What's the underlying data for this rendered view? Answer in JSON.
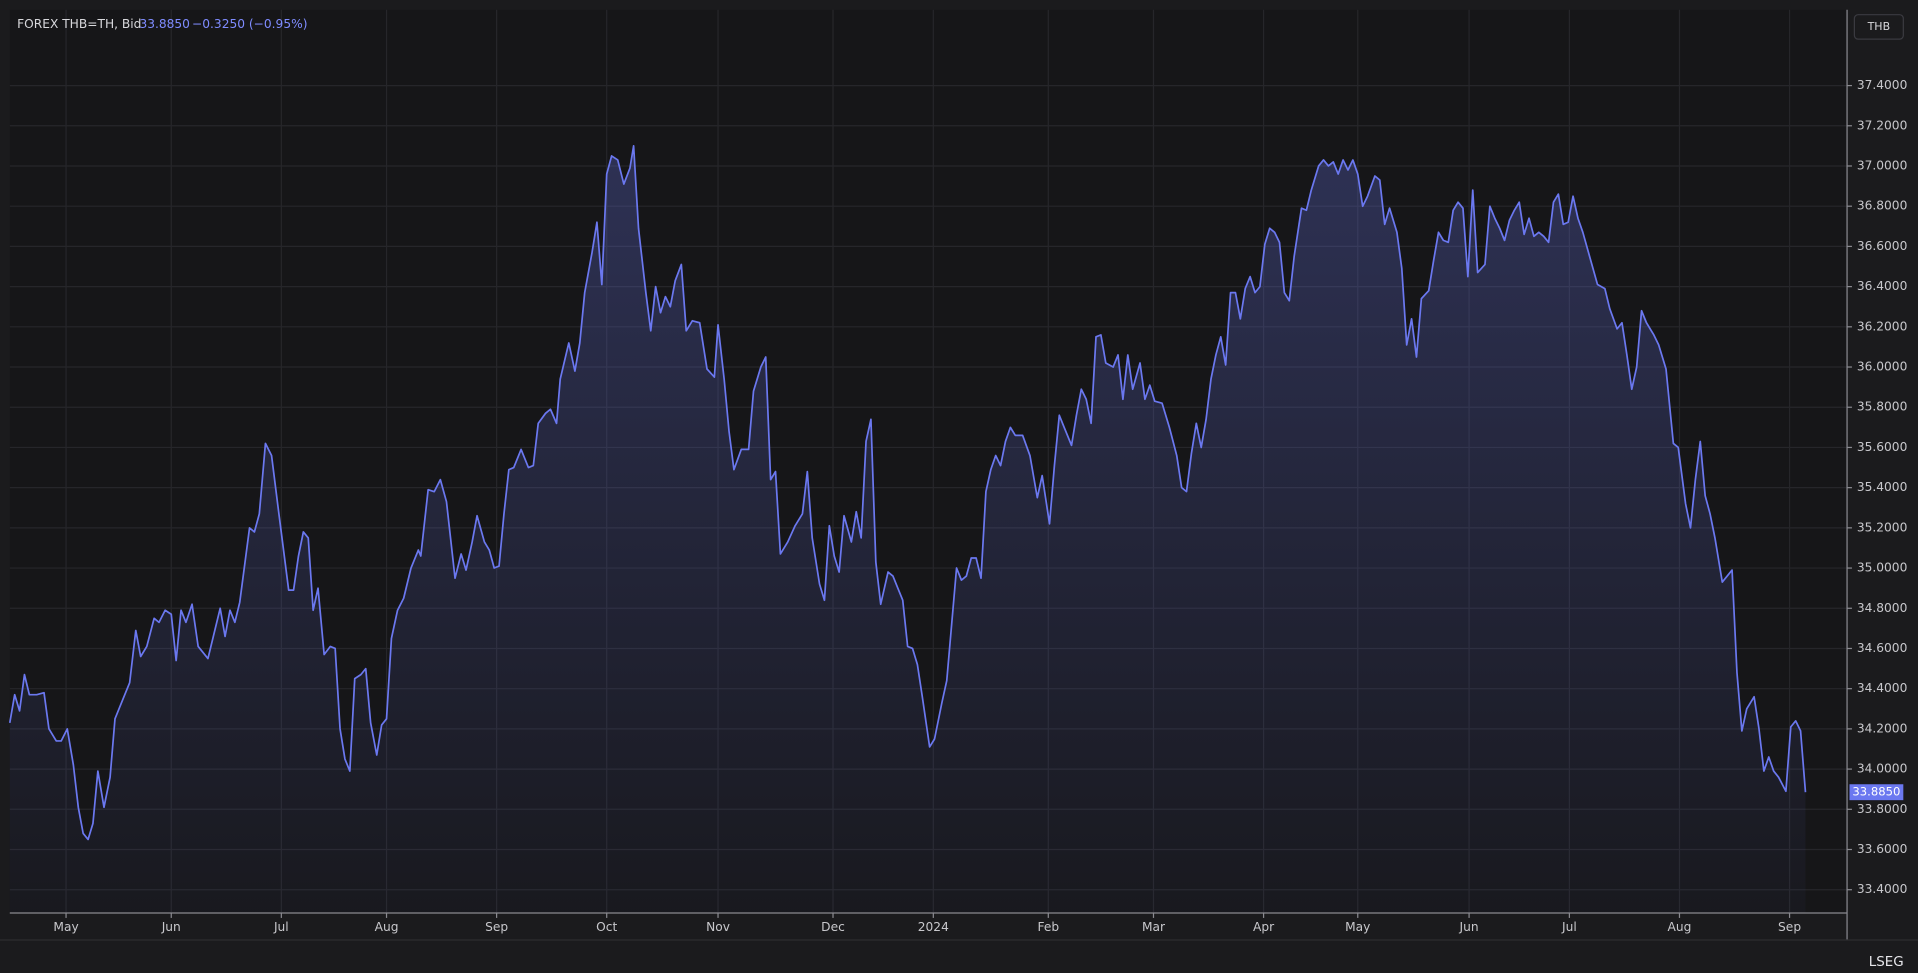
{
  "header": {
    "instrument": "FOREX THB=TH, Bid",
    "last": "33.8850",
    "change": "−0.3250 (−0.95%)",
    "currency": "THB",
    "brand": "LSEG"
  },
  "chart_data": {
    "type": "line",
    "grid": true,
    "xlim": [
      0,
      1502
    ],
    "ylim": [
      33.284,
      37.777
    ],
    "xticks": [
      {
        "value": 46,
        "label": "May"
      },
      {
        "value": 132,
        "label": "Jun"
      },
      {
        "value": 222,
        "label": "Jul"
      },
      {
        "value": 308,
        "label": "Aug"
      },
      {
        "value": 398,
        "label": "Sep"
      },
      {
        "value": 488,
        "label": "Oct"
      },
      {
        "value": 579,
        "label": "Nov"
      },
      {
        "value": 673,
        "label": "Dec"
      },
      {
        "value": 755,
        "label": "2024"
      },
      {
        "value": 849,
        "label": "Feb"
      },
      {
        "value": 935,
        "label": "Mar"
      },
      {
        "value": 1025,
        "label": "Apr"
      },
      {
        "value": 1102,
        "label": "May"
      },
      {
        "value": 1193,
        "label": "Jun"
      },
      {
        "value": 1275,
        "label": "Jul"
      },
      {
        "value": 1365,
        "label": "Aug"
      },
      {
        "value": 1455,
        "label": "Sep"
      }
    ],
    "yticks": [
      {
        "value": 33.4,
        "label": "33.4000"
      },
      {
        "value": 33.6,
        "label": "33.6000"
      },
      {
        "value": 33.8,
        "label": "33.8000"
      },
      {
        "value": 34,
        "label": "34.0000"
      },
      {
        "value": 34.2,
        "label": "34.2000"
      },
      {
        "value": 34.4,
        "label": "34.4000"
      },
      {
        "value": 34.6,
        "label": "34.6000"
      },
      {
        "value": 34.8,
        "label": "34.8000"
      },
      {
        "value": 35,
        "label": "35.0000"
      },
      {
        "value": 35.2,
        "label": "35.2000"
      },
      {
        "value": 35.4,
        "label": "35.4000"
      },
      {
        "value": 35.6,
        "label": "35.6000"
      },
      {
        "value": 35.8,
        "label": "35.8000"
      },
      {
        "value": 36,
        "label": "36.0000"
      },
      {
        "value": 36.2,
        "label": "36.2000"
      },
      {
        "value": 36.4,
        "label": "36.4000"
      },
      {
        "value": 36.6,
        "label": "36.6000"
      },
      {
        "value": 36.8,
        "label": "36.8000"
      },
      {
        "value": 37,
        "label": "37.0000"
      },
      {
        "value": 37.2,
        "label": "37.2000"
      },
      {
        "value": 37.4,
        "label": "37.4000"
      }
    ],
    "x": [
      0,
      4,
      8,
      12,
      16,
      22,
      28,
      32,
      38,
      42,
      47,
      52,
      56,
      60,
      64,
      68,
      72,
      77,
      82,
      86,
      92,
      98,
      103,
      107,
      112,
      118,
      122,
      127,
      132,
      136,
      140,
      144,
      149,
      154,
      162,
      172,
      176,
      180,
      184,
      188,
      196,
      200,
      204,
      209,
      214,
      220,
      228,
      232,
      236,
      240,
      244,
      248,
      252,
      257,
      262,
      266,
      270,
      274,
      278,
      282,
      287,
      291,
      295,
      300,
      304,
      308,
      312,
      317,
      322,
      328,
      334,
      336,
      342,
      347,
      352,
      357,
      364,
      369,
      373,
      378,
      382,
      388,
      392,
      396,
      400,
      404,
      408,
      412,
      418,
      424,
      428,
      432,
      438,
      442,
      447,
      450,
      457,
      462,
      466,
      470,
      476,
      480,
      484,
      488,
      492,
      497,
      502,
      507,
      510,
      514,
      520,
      524,
      528,
      532,
      536,
      540,
      544,
      549,
      553,
      558,
      564,
      570,
      576,
      579,
      584,
      588,
      592,
      598,
      604,
      608,
      614,
      618,
      622,
      626,
      630,
      636,
      642,
      648,
      652,
      656,
      662,
      666,
      670,
      674,
      678,
      682,
      688,
      692,
      696,
      700,
      704,
      708,
      712,
      718,
      722,
      726,
      730,
      734,
      738,
      742,
      746,
      752,
      756,
      762,
      766,
      770,
      774,
      778,
      782,
      786,
      790,
      794,
      798,
      802,
      806,
      810,
      814,
      818,
      822,
      828,
      834,
      840,
      844,
      850,
      854,
      858,
      862,
      868,
      872,
      876,
      880,
      884,
      888,
      892,
      896,
      902,
      906,
      910,
      914,
      918,
      924,
      928,
      932,
      936,
      942,
      948,
      954,
      958,
      962,
      966,
      970,
      974,
      978,
      982,
      986,
      990,
      994,
      998,
      1002,
      1006,
      1010,
      1014,
      1018,
      1022,
      1026,
      1030,
      1034,
      1038,
      1042,
      1046,
      1050,
      1056,
      1060,
      1064,
      1070,
      1074,
      1078,
      1082,
      1086,
      1090,
      1094,
      1098,
      1102,
      1106,
      1110,
      1116,
      1120,
      1124,
      1128,
      1134,
      1138,
      1142,
      1146,
      1150,
      1154,
      1160,
      1164,
      1168,
      1172,
      1176,
      1180,
      1184,
      1188,
      1192,
      1196,
      1200,
      1206,
      1210,
      1214,
      1218,
      1222,
      1226,
      1230,
      1234,
      1238,
      1242,
      1246,
      1250,
      1254,
      1258,
      1262,
      1266,
      1270,
      1274,
      1278,
      1282,
      1286,
      1292,
      1298,
      1304,
      1308,
      1314,
      1318,
      1322,
      1326,
      1330,
      1334,
      1338,
      1344,
      1348,
      1354,
      1360,
      1364,
      1370,
      1374,
      1378,
      1382,
      1386,
      1390,
      1394,
      1400,
      1404,
      1408,
      1412,
      1416,
      1420,
      1426,
      1430,
      1434,
      1438,
      1442,
      1446,
      1452,
      1456,
      1460,
      1464,
      1468
    ],
    "series": [
      {
        "name": "THB=TH",
        "color": "#6b78f0",
        "values": [
          34.23,
          34.37,
          34.29,
          34.47,
          34.37,
          34.37,
          34.38,
          34.2,
          34.14,
          34.14,
          34.2,
          34.02,
          33.81,
          33.68,
          33.65,
          33.73,
          33.99,
          33.81,
          33.96,
          34.25,
          34.34,
          34.43,
          34.69,
          34.56,
          34.61,
          34.75,
          34.73,
          34.79,
          34.77,
          34.54,
          34.79,
          34.73,
          34.82,
          34.61,
          34.55,
          34.8,
          34.66,
          34.79,
          34.73,
          34.83,
          35.2,
          35.18,
          35.27,
          35.62,
          35.56,
          35.27,
          34.89,
          34.89,
          35.06,
          35.18,
          35.15,
          34.79,
          34.9,
          34.57,
          34.61,
          34.6,
          34.2,
          34.05,
          33.99,
          34.45,
          34.47,
          34.5,
          34.23,
          34.07,
          34.22,
          34.25,
          34.65,
          34.79,
          34.85,
          35,
          35.09,
          35.06,
          35.39,
          35.38,
          35.44,
          35.33,
          34.95,
          35.07,
          34.99,
          35.13,
          35.26,
          35.13,
          35.09,
          35,
          35.01,
          35.27,
          35.49,
          35.5,
          35.59,
          35.5,
          35.51,
          35.72,
          35.77,
          35.79,
          35.72,
          35.94,
          36.12,
          35.98,
          36.12,
          36.37,
          36.57,
          36.72,
          36.41,
          36.96,
          37.05,
          37.03,
          36.91,
          36.99,
          37.1,
          36.69,
          36.37,
          36.18,
          36.4,
          36.27,
          36.35,
          36.3,
          36.43,
          36.51,
          36.18,
          36.23,
          36.22,
          35.99,
          35.95,
          36.21,
          35.94,
          35.68,
          35.49,
          35.59,
          35.59,
          35.88,
          36,
          36.05,
          35.44,
          35.48,
          35.07,
          35.13,
          35.21,
          35.27,
          35.48,
          35.15,
          34.92,
          34.84,
          35.21,
          35.06,
          34.98,
          35.26,
          35.13,
          35.28,
          35.15,
          35.63,
          35.74,
          35.03,
          34.82,
          34.98,
          34.96,
          34.9,
          34.84,
          34.61,
          34.6,
          34.52,
          34.36,
          34.11,
          34.15,
          34.33,
          34.44,
          34.72,
          35,
          34.94,
          34.96,
          35.05,
          35.05,
          34.95,
          35.38,
          35.49,
          35.56,
          35.51,
          35.63,
          35.7,
          35.66,
          35.66,
          35.56,
          35.35,
          35.46,
          35.22,
          35.51,
          35.76,
          35.7,
          35.61,
          35.76,
          35.89,
          35.84,
          35.72,
          36.15,
          36.16,
          36.02,
          36,
          36.06,
          35.84,
          36.06,
          35.89,
          36.02,
          35.84,
          35.91,
          35.83,
          35.82,
          35.7,
          35.56,
          35.4,
          35.38,
          35.57,
          35.72,
          35.6,
          35.74,
          35.94,
          36.06,
          36.15,
          36.01,
          36.37,
          36.37,
          36.24,
          36.39,
          36.45,
          36.37,
          36.4,
          36.61,
          36.69,
          36.67,
          36.62,
          36.37,
          36.33,
          36.55,
          36.79,
          36.78,
          36.88,
          37,
          37.03,
          37,
          37.02,
          36.96,
          37.03,
          36.98,
          37.03,
          36.96,
          36.8,
          36.85,
          36.95,
          36.93,
          36.71,
          36.79,
          36.67,
          36.49,
          36.11,
          36.24,
          36.05,
          36.34,
          36.38,
          36.53,
          36.67,
          36.63,
          36.62,
          36.78,
          36.82,
          36.79,
          36.45,
          36.88,
          36.47,
          36.51,
          36.8,
          36.74,
          36.69,
          36.63,
          36.73,
          36.78,
          36.82,
          36.66,
          36.74,
          36.65,
          36.67,
          36.65,
          36.62,
          36.82,
          36.86,
          36.71,
          36.72,
          36.85,
          36.74,
          36.67,
          36.54,
          36.41,
          36.39,
          36.29,
          36.19,
          36.22,
          36.06,
          35.89,
          36,
          36.28,
          36.22,
          36.16,
          36.11,
          35.99,
          35.62,
          35.6,
          35.32,
          35.2,
          35.44,
          35.63,
          35.36,
          35.27,
          35.15,
          34.93,
          34.96,
          34.99,
          34.48,
          34.19,
          34.3,
          34.36,
          34.2,
          33.99,
          34.06,
          33.99,
          33.96,
          33.89,
          34.21,
          34.24,
          34.19,
          33.885
        ]
      }
    ]
  }
}
